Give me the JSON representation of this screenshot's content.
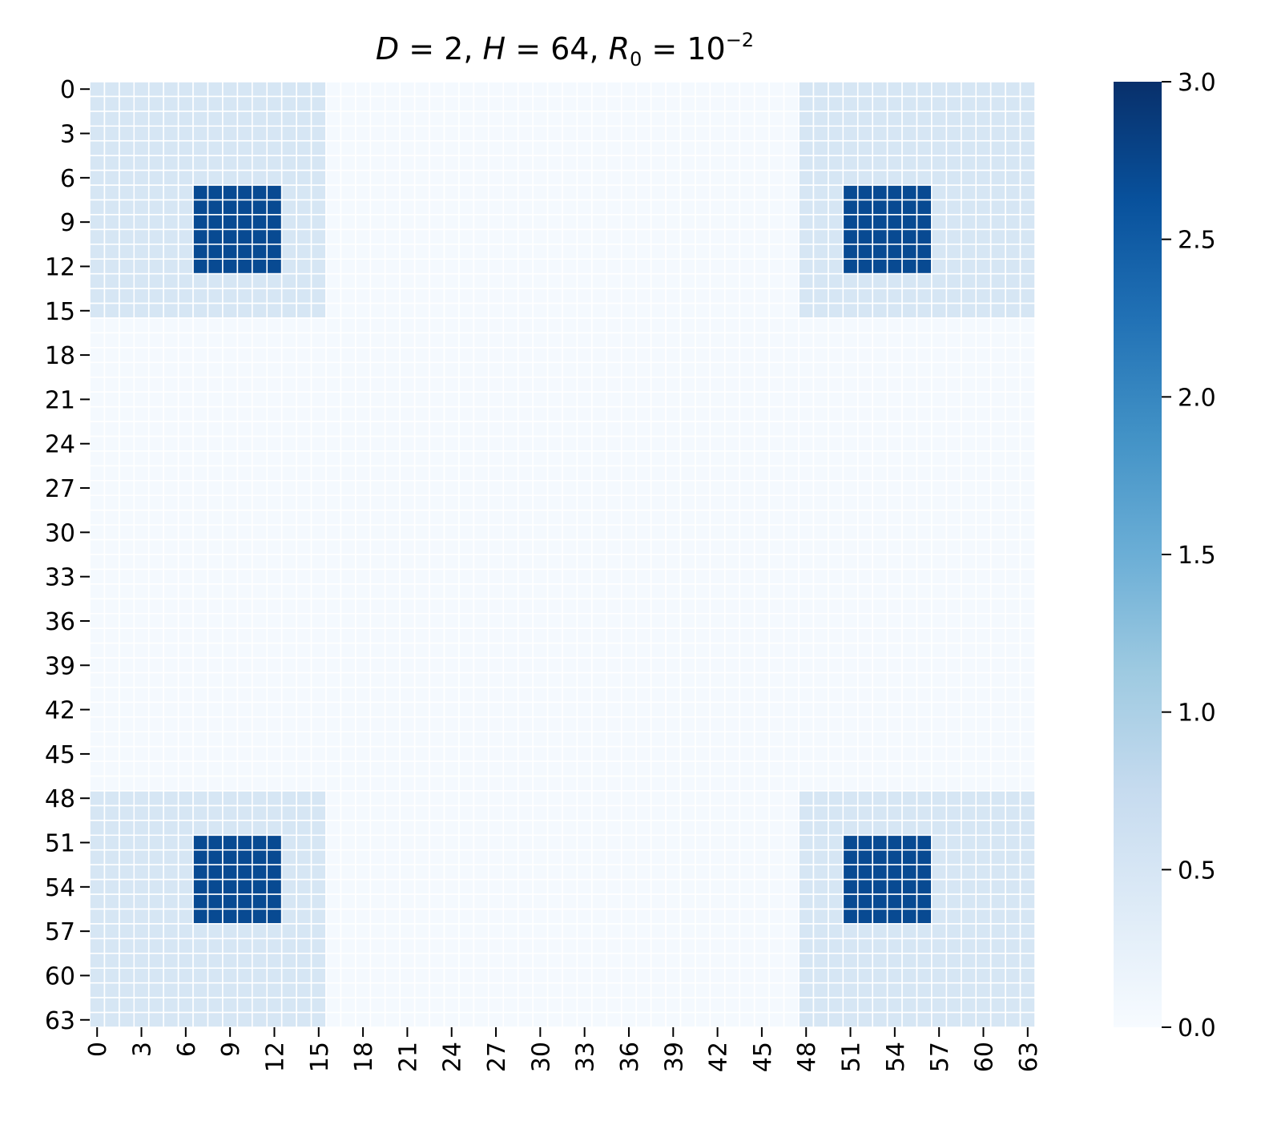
{
  "chart_data": {
    "type": "heatmap",
    "title_parts": {
      "d_sym": "D",
      "d_val": "2",
      "h_sym": "H",
      "h_val": "64",
      "r_sym": "R",
      "r_sub": "0",
      "r_base": "10",
      "r_exp": "−2"
    },
    "rows": 64,
    "cols": 64,
    "tick_labels": [
      "0",
      "3",
      "6",
      "9",
      "12",
      "15",
      "18",
      "21",
      "24",
      "27",
      "30",
      "33",
      "36",
      "39",
      "42",
      "45",
      "48",
      "51",
      "54",
      "57",
      "60",
      "63"
    ],
    "value_levels": {
      "background": 0.05,
      "block": 0.5,
      "peak": 2.7
    },
    "blocks": [
      {
        "rows": [
          0,
          15
        ],
        "cols": [
          0,
          15
        ]
      },
      {
        "rows": [
          0,
          15
        ],
        "cols": [
          48,
          63
        ]
      },
      {
        "rows": [
          48,
          63
        ],
        "cols": [
          0,
          15
        ]
      },
      {
        "rows": [
          48,
          63
        ],
        "cols": [
          48,
          63
        ]
      }
    ],
    "peaks": [
      {
        "rows": [
          7,
          12
        ],
        "cols": [
          7,
          12
        ]
      },
      {
        "rows": [
          7,
          12
        ],
        "cols": [
          51,
          56
        ]
      },
      {
        "rows": [
          51,
          56
        ],
        "cols": [
          7,
          12
        ]
      },
      {
        "rows": [
          51,
          56
        ],
        "cols": [
          51,
          56
        ]
      }
    ],
    "colorbar": {
      "vmin": 0.0,
      "vmax": 3.0,
      "ticks": [
        "0.0",
        "0.5",
        "1.0",
        "1.5",
        "2.0",
        "2.5",
        "3.0"
      ],
      "colormap": "Blues"
    },
    "grid_line_color": "#ffffff"
  }
}
